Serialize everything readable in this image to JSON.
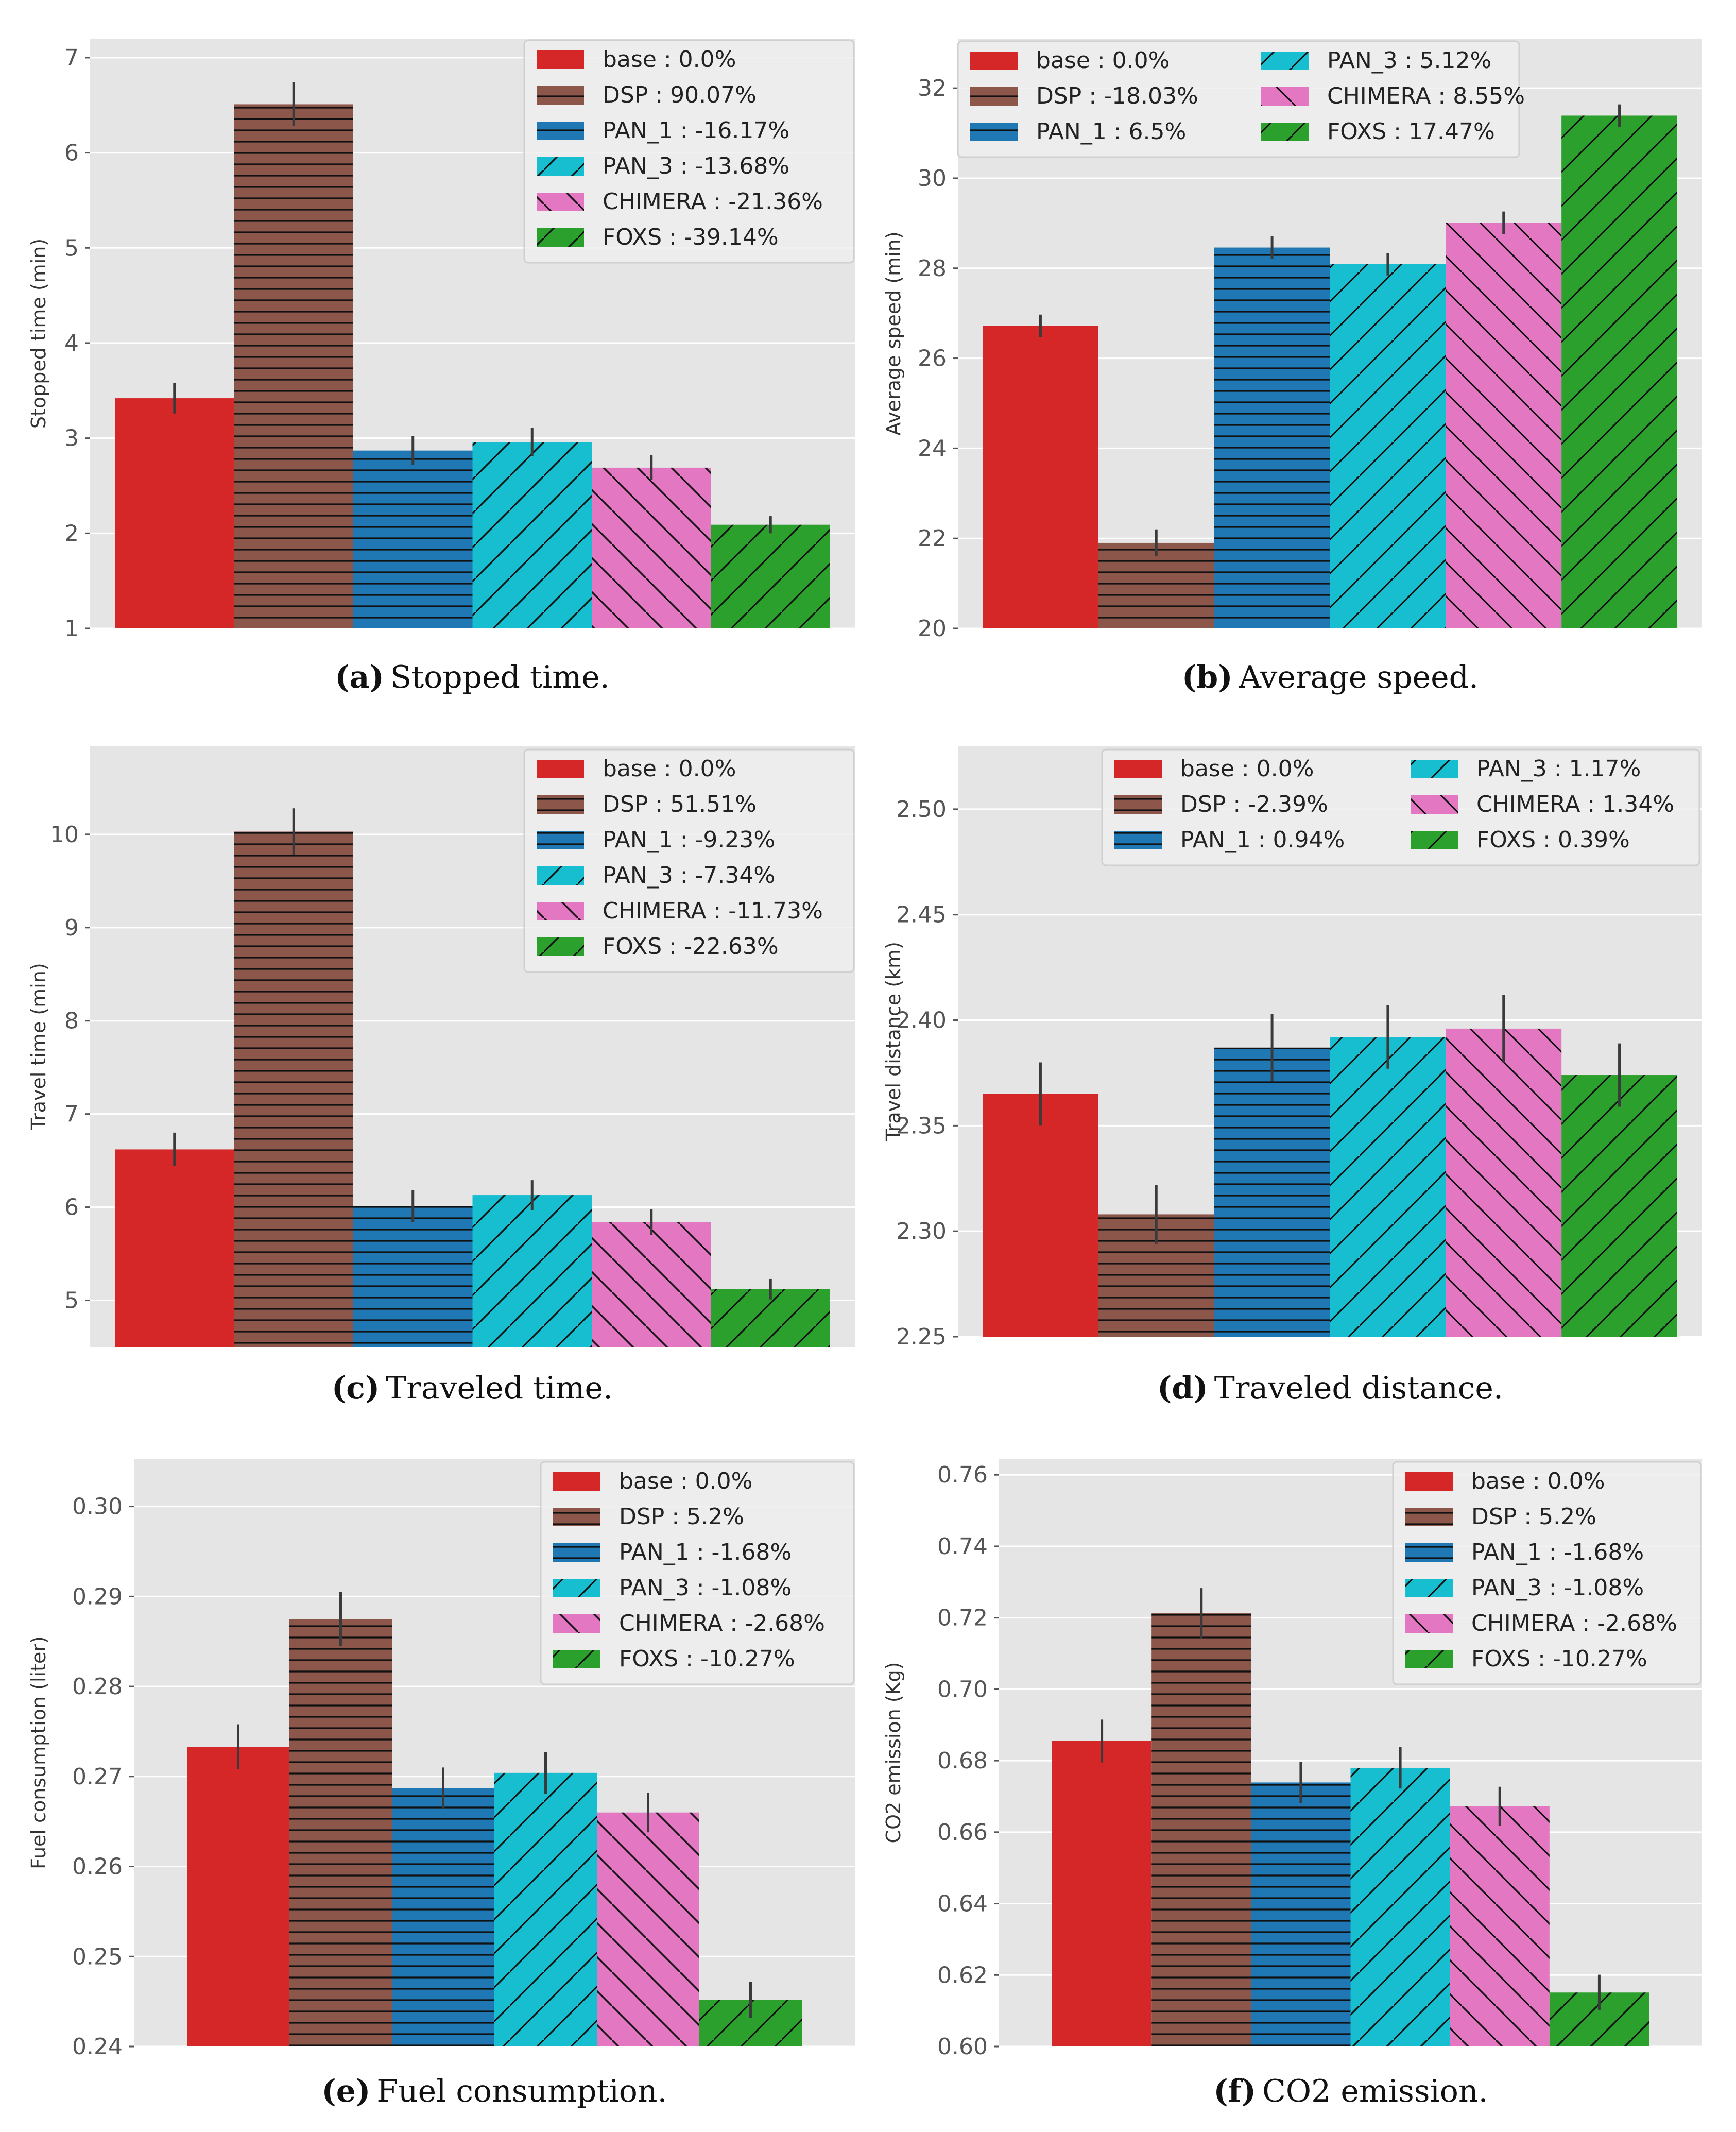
{
  "colors": {
    "plot_background": "#e5e5e5",
    "grid": "#ffffff",
    "tick_text": "#555555",
    "error_bar": "#3a3a3a",
    "hatch": "#111111",
    "legend_background": "#eeeeee",
    "legend_border": "#d0d0d0"
  },
  "chart_data": [
    {
      "id": "a",
      "type": "bar",
      "caption_letter": "(a)",
      "caption_text": "Stopped time.",
      "xlabel": "",
      "ylabel": "Stopped time (min)",
      "ylim": [
        1,
        7.2
      ],
      "yticks": [
        1,
        2,
        3,
        4,
        5,
        6,
        7
      ],
      "yticks_labels": [
        "1",
        "2",
        "3",
        "4",
        "5",
        "6",
        "7"
      ],
      "legend": {
        "placement": "top-right",
        "columns": 1
      },
      "series": [
        {
          "name": "base",
          "legend_label": "base : 0.0%",
          "value": 3.42,
          "err": 0.16,
          "color": "#d62728",
          "hatch": "none"
        },
        {
          "name": "DSP",
          "legend_label": "DSP : 90.07%",
          "value": 6.51,
          "err": 0.23,
          "color": "#8c564b",
          "hatch": "horizontal"
        },
        {
          "name": "PAN_1",
          "legend_label": "PAN_1 : -16.17%",
          "value": 2.87,
          "err": 0.15,
          "color": "#1f77b4",
          "hatch": "horizontal"
        },
        {
          "name": "PAN_3",
          "legend_label": "PAN_3 : -13.68%",
          "value": 2.96,
          "err": 0.15,
          "color": "#17becf",
          "hatch": "forward"
        },
        {
          "name": "CHIMERA",
          "legend_label": "CHIMERA : -21.36%",
          "value": 2.69,
          "err": 0.13,
          "color": "#e377c2",
          "hatch": "backward"
        },
        {
          "name": "FOXS",
          "legend_label": "FOXS : -39.14%",
          "value": 2.09,
          "err": 0.09,
          "color": "#2ca02c",
          "hatch": "forward"
        }
      ]
    },
    {
      "id": "b",
      "type": "bar",
      "caption_letter": "(b)",
      "caption_text": "Average speed.",
      "xlabel": "",
      "ylabel": "Average speed (min)",
      "ylim": [
        20,
        33.1
      ],
      "yticks": [
        20,
        22,
        24,
        26,
        28,
        30,
        32
      ],
      "yticks_labels": [
        "20",
        "22",
        "24",
        "26",
        "28",
        "30",
        "32"
      ],
      "legend": {
        "placement": "top",
        "columns": 2
      },
      "series": [
        {
          "name": "base",
          "legend_label": "base : 0.0%",
          "value": 26.72,
          "err": 0.25,
          "color": "#d62728",
          "hatch": "none"
        },
        {
          "name": "DSP",
          "legend_label": "DSP : -18.03%",
          "value": 21.9,
          "err": 0.3,
          "color": "#8c564b",
          "hatch": "horizontal"
        },
        {
          "name": "PAN_1",
          "legend_label": "PAN_1 : 6.5%",
          "value": 28.46,
          "err": 0.25,
          "color": "#1f77b4",
          "hatch": "horizontal"
        },
        {
          "name": "PAN_3",
          "legend_label": "PAN_3 : 5.12%",
          "value": 28.09,
          "err": 0.25,
          "color": "#17becf",
          "hatch": "forward"
        },
        {
          "name": "CHIMERA",
          "legend_label": "CHIMERA : 8.55%",
          "value": 29.01,
          "err": 0.25,
          "color": "#e377c2",
          "hatch": "backward"
        },
        {
          "name": "FOXS",
          "legend_label": "FOXS : 17.47%",
          "value": 31.39,
          "err": 0.25,
          "color": "#2ca02c",
          "hatch": "forward"
        }
      ]
    },
    {
      "id": "c",
      "type": "bar",
      "caption_letter": "(c)",
      "caption_text": "Traveled time.",
      "xlabel": "",
      "ylabel": "Travel time (min)",
      "ylim": [
        4.5,
        10.95
      ],
      "yticks": [
        5,
        6,
        7,
        8,
        9,
        10
      ],
      "yticks_labels": [
        "5",
        "6",
        "7",
        "8",
        "9",
        "10"
      ],
      "legend": {
        "placement": "top-right",
        "columns": 1
      },
      "series": [
        {
          "name": "base",
          "legend_label": "base : 0.0%",
          "value": 6.62,
          "err": 0.18,
          "color": "#d62728",
          "hatch": "none"
        },
        {
          "name": "DSP",
          "legend_label": "DSP : 51.51%",
          "value": 10.03,
          "err": 0.25,
          "color": "#8c564b",
          "hatch": "horizontal"
        },
        {
          "name": "PAN_1",
          "legend_label": "PAN_1 : -9.23%",
          "value": 6.01,
          "err": 0.17,
          "color": "#1f77b4",
          "hatch": "horizontal"
        },
        {
          "name": "PAN_3",
          "legend_label": "PAN_3 : -7.34%",
          "value": 6.13,
          "err": 0.16,
          "color": "#17becf",
          "hatch": "forward"
        },
        {
          "name": "CHIMERA",
          "legend_label": "CHIMERA : -11.73%",
          "value": 5.84,
          "err": 0.14,
          "color": "#e377c2",
          "hatch": "backward"
        },
        {
          "name": "FOXS",
          "legend_label": "FOXS : -22.63%",
          "value": 5.12,
          "err": 0.11,
          "color": "#2ca02c",
          "hatch": "forward"
        }
      ]
    },
    {
      "id": "d",
      "type": "bar",
      "caption_letter": "(d)",
      "caption_text": "Traveled distance.",
      "xlabel": "",
      "ylabel": "Travel distance (km)",
      "ylim": [
        2.25,
        2.53
      ],
      "yticks": [
        2.25,
        2.3,
        2.35,
        2.4,
        2.45,
        2.5
      ],
      "yticks_labels": [
        "2.25",
        "2.30",
        "2.35",
        "2.40",
        "2.45",
        "2.50"
      ],
      "legend": {
        "placement": "top-right",
        "columns": 2
      },
      "series": [
        {
          "name": "base",
          "legend_label": "base : 0.0%",
          "value": 2.365,
          "err": 0.015,
          "color": "#d62728",
          "hatch": "none"
        },
        {
          "name": "DSP",
          "legend_label": "DSP : -2.39%",
          "value": 2.308,
          "err": 0.014,
          "color": "#8c564b",
          "hatch": "horizontal"
        },
        {
          "name": "PAN_1",
          "legend_label": "PAN_1 : 0.94%",
          "value": 2.387,
          "err": 0.016,
          "color": "#1f77b4",
          "hatch": "horizontal"
        },
        {
          "name": "PAN_3",
          "legend_label": "PAN_3 : 1.17%",
          "value": 2.392,
          "err": 0.015,
          "color": "#17becf",
          "hatch": "forward"
        },
        {
          "name": "CHIMERA",
          "legend_label": "CHIMERA : 1.34%",
          "value": 2.396,
          "err": 0.016,
          "color": "#e377c2",
          "hatch": "backward"
        },
        {
          "name": "FOXS",
          "legend_label": "FOXS : 0.39%",
          "value": 2.374,
          "err": 0.015,
          "color": "#2ca02c",
          "hatch": "forward"
        }
      ]
    },
    {
      "id": "e",
      "type": "bar",
      "caption_letter": "(e)",
      "caption_text": "Fuel consumption.",
      "xlabel": "",
      "ylabel": "Fuel consumption (liter)",
      "ylim": [
        0.24,
        0.3053
      ],
      "yticks": [
        0.24,
        0.25,
        0.26,
        0.27,
        0.28,
        0.29,
        0.3
      ],
      "yticks_labels": [
        "0.24",
        "0.25",
        "0.26",
        "0.27",
        "0.28",
        "0.29",
        "0.30"
      ],
      "legend": {
        "placement": "top-right",
        "columns": 1
      },
      "series": [
        {
          "name": "base",
          "legend_label": "base : 0.0%",
          "value": 0.2733,
          "err": 0.0025,
          "color": "#d62728",
          "hatch": "none"
        },
        {
          "name": "DSP",
          "legend_label": "DSP : 5.2%",
          "value": 0.2875,
          "err": 0.003,
          "color": "#8c564b",
          "hatch": "horizontal"
        },
        {
          "name": "PAN_1",
          "legend_label": "PAN_1 : -1.68%",
          "value": 0.2687,
          "err": 0.0023,
          "color": "#1f77b4",
          "hatch": "horizontal"
        },
        {
          "name": "PAN_3",
          "legend_label": "PAN_3 : -1.08%",
          "value": 0.2704,
          "err": 0.0023,
          "color": "#17becf",
          "hatch": "forward"
        },
        {
          "name": "CHIMERA",
          "legend_label": "CHIMERA : -2.68%",
          "value": 0.266,
          "err": 0.0022,
          "color": "#e377c2",
          "hatch": "backward"
        },
        {
          "name": "FOXS",
          "legend_label": "FOXS : -10.27%",
          "value": 0.2452,
          "err": 0.002,
          "color": "#2ca02c",
          "hatch": "forward"
        }
      ]
    },
    {
      "id": "f",
      "type": "bar",
      "caption_letter": "(f)",
      "caption_text": "CO2 emission.",
      "xlabel": "",
      "ylabel": "CO2 emission (Kg)",
      "ylim": [
        0.6,
        0.7645
      ],
      "yticks": [
        0.6,
        0.62,
        0.64,
        0.66,
        0.68,
        0.7,
        0.72,
        0.74,
        0.76
      ],
      "yticks_labels": [
        "0.60",
        "0.62",
        "0.64",
        "0.66",
        "0.68",
        "0.70",
        "0.72",
        "0.74",
        "0.76"
      ],
      "legend": {
        "placement": "top-right",
        "columns": 1
      },
      "series": [
        {
          "name": "base",
          "legend_label": "base : 0.0%",
          "value": 0.6855,
          "err": 0.006,
          "color": "#d62728",
          "hatch": "none"
        },
        {
          "name": "DSP",
          "legend_label": "DSP : 5.2%",
          "value": 0.7213,
          "err": 0.007,
          "color": "#8c564b",
          "hatch": "horizontal"
        },
        {
          "name": "PAN_1",
          "legend_label": "PAN_1 : -1.68%",
          "value": 0.6739,
          "err": 0.0058,
          "color": "#1f77b4",
          "hatch": "horizontal"
        },
        {
          "name": "PAN_3",
          "legend_label": "PAN_3 : -1.08%",
          "value": 0.678,
          "err": 0.0058,
          "color": "#17becf",
          "hatch": "forward"
        },
        {
          "name": "CHIMERA",
          "legend_label": "CHIMERA : -2.68%",
          "value": 0.6672,
          "err": 0.0055,
          "color": "#e377c2",
          "hatch": "backward"
        },
        {
          "name": "FOXS",
          "legend_label": "FOXS : -10.27%",
          "value": 0.6151,
          "err": 0.005,
          "color": "#2ca02c",
          "hatch": "forward"
        }
      ]
    }
  ]
}
